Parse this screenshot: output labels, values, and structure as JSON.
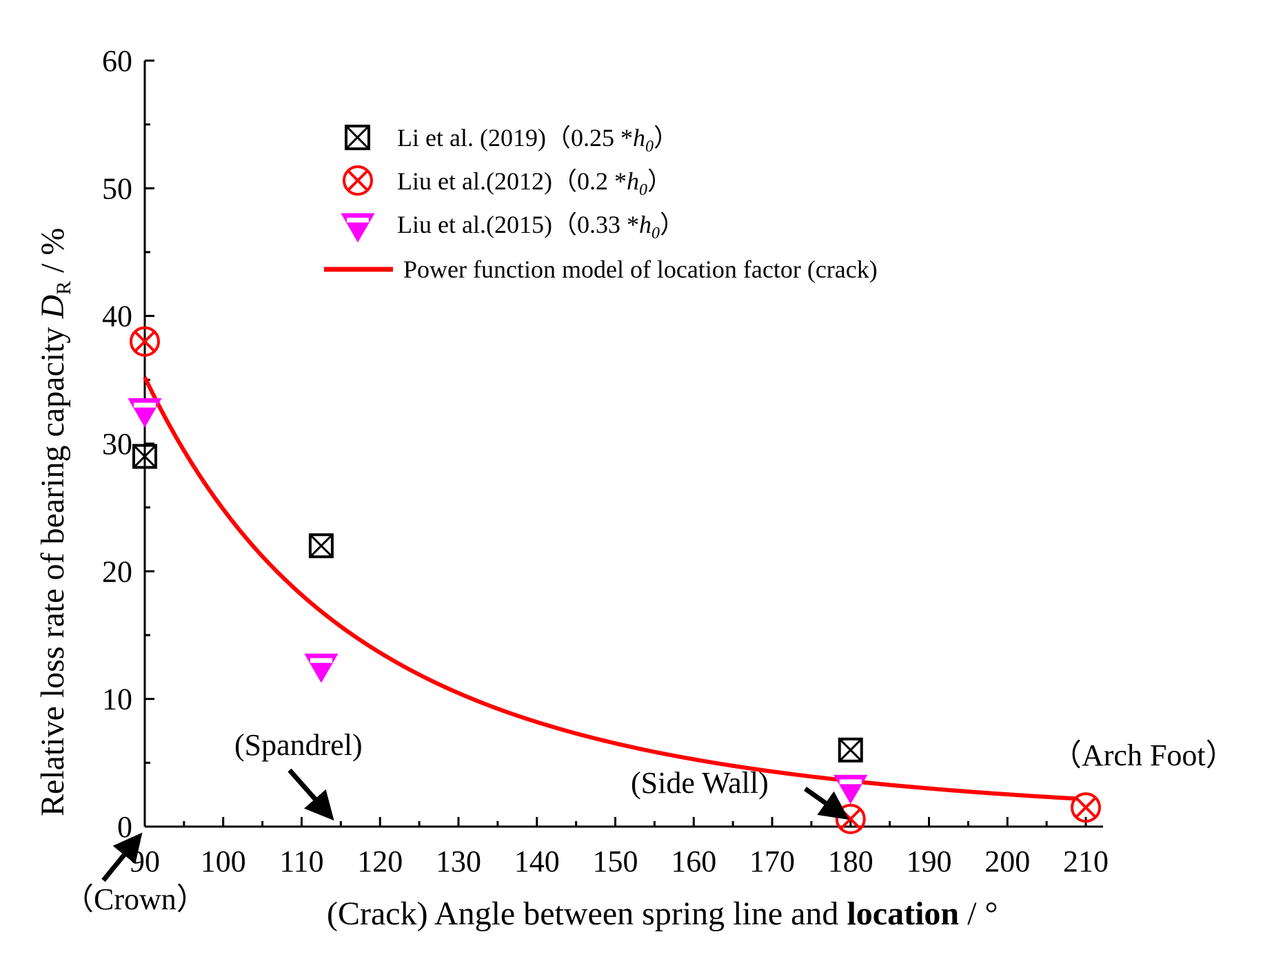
{
  "chart_data": {
    "type": "scatter",
    "title": "",
    "xlabel_prefix": "(Crack) Angle between spring line and ",
    "xlabel_bold": "location",
    "xlabel_suffix": " / °",
    "ylabel_main": "Relative loss rate of bearing capacity ",
    "ylabel_var": "D",
    "ylabel_sub": "R",
    "ylabel_unit": " / %",
    "xlim": [
      90,
      210
    ],
    "ylim": [
      0,
      60
    ],
    "xticks": [
      90,
      100,
      110,
      120,
      130,
      140,
      150,
      160,
      170,
      180,
      190,
      200,
      210
    ],
    "yticks": [
      0,
      10,
      20,
      30,
      40,
      50,
      60
    ],
    "xtick_labels": [
      "90",
      "100",
      "110",
      "120",
      "130",
      "140",
      "150",
      "160",
      "170",
      "180",
      "190",
      "200",
      "210"
    ],
    "ytick_labels": [
      "0",
      "10",
      "20",
      "30",
      "40",
      "50",
      "60"
    ],
    "series": [
      {
        "name": "Li et al. (2019)",
        "suffix": "（0.25 *",
        "var": "h",
        "sub": "0",
        "close": "）",
        "marker": "boxed-x",
        "color": "#000000",
        "x": [
          90,
          112.5,
          180
        ],
        "y": [
          29,
          22,
          6
        ]
      },
      {
        "name": "Liu et al.(2012)",
        "suffix": "（0.2 *",
        "var": "h",
        "sub": "0",
        "close": "）",
        "marker": "circled-x",
        "color": "#ff0000",
        "x": [
          90,
          180,
          210
        ],
        "y": [
          38,
          0.6,
          1.5
        ]
      },
      {
        "name": "Liu et al.(2015)",
        "suffix": "（0.33 *",
        "var": "h",
        "sub": "0",
        "close": "）",
        "marker": "half-filled-triangle-down",
        "color": "#ff00ff",
        "x": [
          90,
          112.5,
          180
        ],
        "y": [
          32.5,
          12.5,
          3
        ]
      }
    ],
    "fit": {
      "name": "Power function model of  location factor (crack)",
      "color": "#ff0000",
      "type": "power",
      "coef_a": 35.2,
      "exponent": -3.3,
      "x_start": 90,
      "x_end": 209
    },
    "annotations": [
      {
        "label": "(Spandrel)",
        "x": 112.5,
        "y": 0
      },
      {
        "label": "(Side Wall)",
        "x": 180,
        "y": 0
      },
      {
        "label": "（Arch Foot）",
        "x": 210,
        "y": 0
      },
      {
        "label": "（Crown）",
        "x": 90,
        "y": 0
      }
    ]
  }
}
